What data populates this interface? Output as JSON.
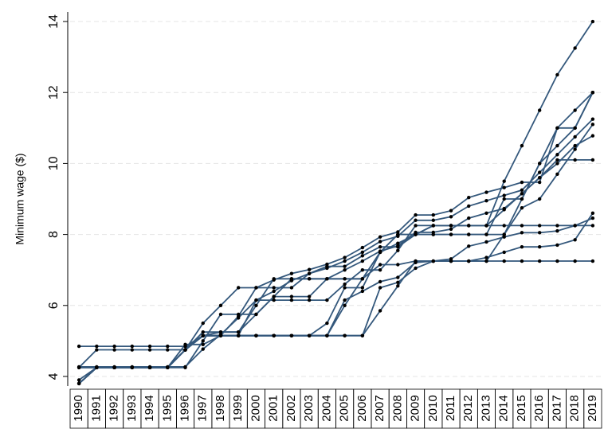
{
  "chart_data": {
    "type": "line",
    "y_label": "Minimum wage ($)",
    "categories": [
      "1990",
      "1991",
      "1992",
      "1993",
      "1994",
      "1995",
      "1996",
      "1997",
      "1998",
      "1999",
      "2000",
      "2001",
      "2002",
      "2003",
      "2004",
      "2005",
      "2006",
      "2007",
      "2008",
      "2009",
      "2010",
      "2011",
      "2012",
      "2013",
      "2014",
      "2015",
      "2016",
      "2017",
      "2018",
      "2019"
    ],
    "ylim": [
      3.73,
      14.27
    ],
    "yticks": [
      4,
      6,
      8,
      10,
      12,
      14
    ],
    "grid": true,
    "color": "#34587c",
    "marker_color": "#000000",
    "series": [
      {
        "values": [
          3.8,
          4.25,
          4.25,
          4.25,
          4.25,
          4.25,
          4.75,
          5.15,
          5.15,
          5.15,
          5.15,
          5.15,
          5.15,
          5.15,
          5.15,
          5.15,
          5.15,
          5.85,
          6.55,
          7.25,
          7.25,
          7.25,
          7.25,
          7.25,
          7.25,
          7.25,
          7.25,
          7.25,
          7.25,
          7.25
        ]
      },
      {
        "values": [
          3.9,
          4.25,
          4.25,
          4.25,
          4.25,
          4.25,
          4.75,
          5.15,
          5.15,
          5.15,
          6.15,
          6.15,
          6.15,
          6.15,
          6.15,
          6.6,
          7.0,
          7.0,
          7.55,
          8.25,
          8.25,
          8.25,
          8.25,
          8.25,
          9.5,
          10.5,
          11.5,
          12.5,
          13.25,
          14.0
        ]
      },
      {
        "values": [
          4.25,
          4.25,
          4.25,
          4.25,
          4.25,
          4.25,
          4.9,
          4.9,
          5.15,
          5.7,
          6.5,
          6.72,
          6.9,
          7.01,
          7.16,
          7.35,
          7.63,
          7.93,
          8.07,
          8.55,
          8.55,
          8.67,
          9.04,
          9.19,
          9.32,
          9.47,
          9.47,
          11.0,
          11.5,
          12.0
        ]
      },
      {
        "values": [
          4.25,
          4.75,
          4.75,
          4.75,
          4.75,
          4.75,
          4.75,
          5.5,
          6.0,
          6.5,
          6.5,
          6.5,
          6.5,
          6.9,
          7.05,
          7.25,
          7.5,
          7.8,
          7.95,
          8.4,
          8.4,
          8.5,
          8.8,
          8.95,
          9.1,
          9.25,
          9.75,
          10.25,
          10.75,
          11.25
        ]
      },
      {
        "values": [
          4.25,
          4.25,
          4.25,
          4.25,
          4.25,
          4.25,
          4.25,
          5.0,
          5.75,
          5.75,
          5.75,
          6.25,
          6.75,
          6.75,
          6.75,
          6.75,
          6.75,
          7.5,
          8.0,
          8.0,
          8.0,
          8.0,
          8.0,
          8.0,
          9.0,
          9.0,
          10.0,
          10.5,
          11.0,
          12.0
        ]
      },
      {
        "values": [
          3.8,
          4.25,
          4.25,
          4.25,
          4.25,
          4.25,
          4.75,
          5.25,
          5.25,
          5.25,
          6.0,
          6.75,
          6.75,
          6.75,
          6.75,
          6.75,
          6.75,
          7.5,
          8.0,
          8.0,
          8.0,
          8.0,
          8.0,
          8.0,
          8.0,
          9.0,
          10.0,
          11.0,
          11.0,
          12.0
        ]
      },
      {
        "values": [
          4.27,
          4.27,
          4.27,
          4.27,
          4.27,
          4.27,
          4.27,
          4.77,
          5.18,
          5.65,
          6.15,
          6.4,
          6.7,
          6.9,
          7.1,
          7.1,
          7.4,
          7.65,
          7.65,
          8.0,
          8.25,
          8.25,
          8.25,
          8.25,
          8.7,
          9.15,
          9.6,
          10.1,
          10.1,
          10.1
        ]
      },
      {
        "values": [
          3.8,
          4.25,
          4.25,
          4.25,
          4.25,
          4.25,
          4.75,
          5.15,
          5.15,
          5.15,
          5.15,
          5.15,
          5.15,
          5.15,
          5.5,
          6.5,
          6.5,
          7.5,
          7.75,
          8.0,
          8.25,
          8.25,
          8.25,
          8.25,
          8.25,
          8.25,
          8.25,
          8.25,
          8.25,
          8.25
        ]
      },
      {
        "values": [
          3.8,
          4.25,
          4.25,
          4.25,
          4.25,
          4.25,
          4.75,
          5.15,
          5.15,
          5.15,
          5.15,
          5.15,
          5.15,
          5.15,
          5.15,
          6.15,
          6.4,
          6.67,
          6.79,
          7.21,
          7.25,
          7.31,
          7.67,
          7.79,
          7.93,
          8.05,
          8.05,
          8.1,
          8.25,
          8.46
        ]
      },
      {
        "values": [
          4.85,
          4.85,
          4.85,
          4.85,
          4.85,
          4.85,
          4.85,
          5.15,
          5.25,
          5.25,
          5.75,
          6.25,
          6.25,
          6.25,
          6.75,
          7.0,
          7.25,
          7.53,
          7.68,
          8.06,
          8.06,
          8.15,
          8.46,
          8.6,
          8.73,
          9.15,
          9.6,
          10.0,
          10.5,
          10.78
        ]
      },
      {
        "values": [
          3.8,
          4.25,
          4.25,
          4.25,
          4.25,
          4.25,
          4.75,
          5.15,
          5.15,
          5.15,
          5.15,
          5.15,
          5.15,
          5.15,
          5.15,
          5.15,
          5.15,
          6.5,
          6.65,
          7.05,
          7.25,
          7.25,
          7.25,
          7.35,
          7.5,
          7.65,
          7.65,
          7.7,
          7.85,
          8.6
        ]
      },
      {
        "values": [
          3.8,
          4.25,
          4.25,
          4.25,
          4.25,
          4.25,
          4.75,
          5.15,
          5.15,
          5.15,
          5.15,
          5.15,
          5.15,
          5.15,
          5.15,
          6.0,
          6.75,
          7.15,
          7.15,
          7.25,
          7.25,
          7.25,
          7.25,
          7.25,
          8.0,
          8.75,
          9.0,
          9.7,
          10.4,
          11.1
        ]
      }
    ]
  }
}
